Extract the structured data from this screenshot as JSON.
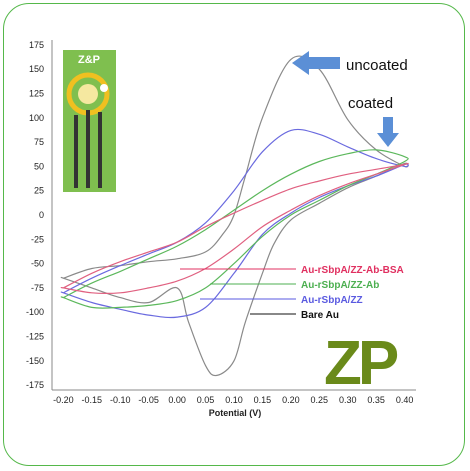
{
  "chart_data": {
    "type": "line",
    "xlabel": "Potential (V)",
    "ylabel": "",
    "xlim": [
      -0.22,
      0.42
    ],
    "ylim": [
      -180,
      180
    ],
    "x_ticks": [
      "-0.20",
      "-0.15",
      "-0.10",
      "-0.05",
      "0.00",
      "0.05",
      "0.10",
      "0.15",
      "0.20",
      "0.25",
      "0.30",
      "0.35",
      "0.40"
    ],
    "y_ticks": [
      "175",
      "150",
      "125",
      "100",
      "75",
      "50",
      "25",
      "0",
      "-25",
      "-50",
      "-75",
      "-100",
      "-125",
      "-150",
      "-175"
    ],
    "grid": false,
    "series": [
      {
        "name": "Bare Au",
        "color": "#8a8a8a",
        "legend_color": "#111111",
        "x": [
          -0.2,
          -0.15,
          -0.1,
          -0.05,
          0,
          0.05,
          0.08,
          0.1,
          0.12,
          0.15,
          0.2,
          0.25,
          0.3,
          0.35,
          0.4,
          0.4,
          0.35,
          0.3,
          0.25,
          0.2,
          0.17,
          0.15,
          0.12,
          0.1,
          0.07,
          0.05,
          0.02,
          0,
          -0.05,
          -0.1,
          -0.15,
          -0.2
        ],
        "y": [
          -65,
          -55,
          -52,
          -48,
          -45,
          -38,
          -20,
          0,
          40,
          100,
          160,
          150,
          98,
          67,
          50,
          53,
          40,
          28,
          12,
          -5,
          -30,
          -60,
          -110,
          -150,
          -165,
          -155,
          -110,
          -75,
          -90,
          -85,
          -75,
          -65
        ]
      },
      {
        "name": "Au-rSbpA/ZZ",
        "color": "#6a6adf",
        "legend_color": "#5a5ae0",
        "x": [
          -0.2,
          -0.15,
          -0.1,
          -0.05,
          0,
          0.05,
          0.1,
          0.15,
          0.2,
          0.25,
          0.3,
          0.35,
          0.4,
          0.4,
          0.35,
          0.3,
          0.25,
          0.2,
          0.15,
          0.1,
          0.05,
          0,
          -0.05,
          -0.1,
          -0.15,
          -0.2
        ],
        "y": [
          -80,
          -65,
          -52,
          -40,
          -28,
          -8,
          25,
          65,
          87,
          83,
          70,
          58,
          50,
          52,
          40,
          30,
          18,
          2,
          -20,
          -60,
          -95,
          -105,
          -103,
          -97,
          -90,
          -80
        ]
      },
      {
        "name": "Au-rSbpA/ZZ-Ab",
        "color": "#5cb85c",
        "legend_color": "#4caf50",
        "x": [
          -0.2,
          -0.15,
          -0.1,
          -0.05,
          0,
          0.05,
          0.1,
          0.15,
          0.2,
          0.25,
          0.3,
          0.35,
          0.4,
          0.4,
          0.35,
          0.3,
          0.25,
          0.2,
          0.15,
          0.1,
          0.05,
          0,
          -0.05,
          -0.1,
          -0.15,
          -0.2
        ],
        "y": [
          -85,
          -70,
          -58,
          -45,
          -32,
          -15,
          5,
          25,
          42,
          55,
          63,
          67,
          60,
          55,
          42,
          30,
          15,
          0,
          -22,
          -50,
          -75,
          -88,
          -93,
          -95,
          -95,
          -85
        ]
      },
      {
        "name": "Au-rSbpA/ZZ-Ab-BSA",
        "color": "#e06080",
        "legend_color": "#e03060",
        "x": [
          -0.2,
          -0.15,
          -0.1,
          -0.05,
          0,
          0.05,
          0.1,
          0.15,
          0.2,
          0.25,
          0.3,
          0.35,
          0.4,
          0.4,
          0.35,
          0.3,
          0.25,
          0.2,
          0.15,
          0.1,
          0.05,
          0,
          -0.05,
          -0.1,
          -0.15,
          -0.2
        ],
        "y": [
          -75,
          -60,
          -48,
          -38,
          -28,
          -12,
          2,
          15,
          27,
          35,
          42,
          47,
          52,
          52,
          42,
          32,
          20,
          5,
          -12,
          -35,
          -55,
          -68,
          -75,
          -80,
          -80,
          -75
        ]
      }
    ]
  },
  "annotations": {
    "uncoated": "uncoated",
    "coated": "coated",
    "arrow_color": "#5b8fd6"
  },
  "inset": {
    "label": "Z&P",
    "bg_color": "#7fbf4f",
    "ring_color": "#f0c020"
  },
  "logo": {
    "text": "ZP",
    "color": "#6a8a1a"
  }
}
